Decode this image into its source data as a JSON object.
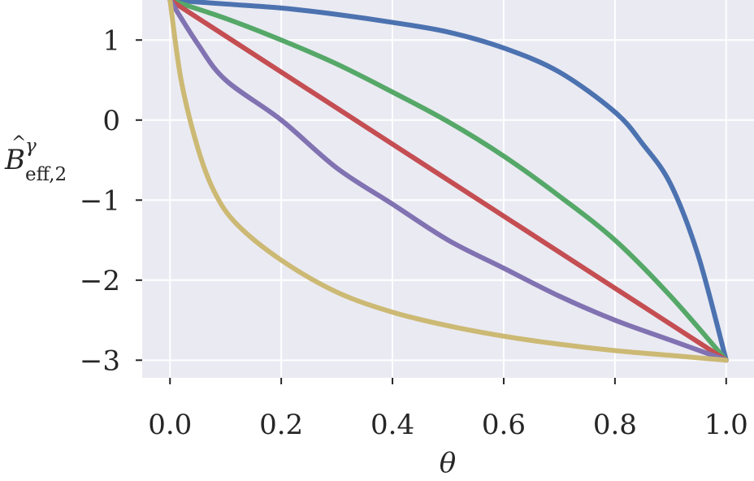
{
  "chart_data": {
    "type": "line",
    "title": "",
    "xlabel": "θ",
    "ylabel": {
      "base": "B",
      "subscript": "eff,2",
      "superscript": "γ"
    },
    "xlim": [
      -0.05,
      1.05
    ],
    "ylim": [
      -3.22,
      1.5
    ],
    "xticks": [
      0.0,
      0.2,
      0.4,
      0.6,
      0.8,
      1.0
    ],
    "xtick_labels": [
      "0.0",
      "0.2",
      "0.4",
      "0.6",
      "0.8",
      "1.0"
    ],
    "yticks": [
      1,
      0,
      -1,
      -2,
      -3
    ],
    "ytick_labels": [
      "1",
      "0",
      "−1",
      "−2",
      "−3"
    ],
    "grid": true,
    "background": "#eaeaf2",
    "grid_color": "#ffffff",
    "series": [
      {
        "color": "#4c72b0",
        "x": [
          0.0,
          0.1,
          0.2,
          0.3,
          0.4,
          0.5,
          0.6,
          0.7,
          0.8,
          0.85,
          0.9,
          0.95,
          1.0
        ],
        "y": [
          1.5,
          1.45,
          1.4,
          1.32,
          1.22,
          1.1,
          0.9,
          0.6,
          0.1,
          -0.3,
          -0.8,
          -1.7,
          -3.0
        ]
      },
      {
        "color": "#55a868",
        "x": [
          0.0,
          0.1,
          0.2,
          0.3,
          0.4,
          0.5,
          0.6,
          0.7,
          0.8,
          0.9,
          1.0
        ],
        "y": [
          1.5,
          1.27,
          1.0,
          0.7,
          0.35,
          -0.02,
          -0.45,
          -0.95,
          -1.5,
          -2.2,
          -3.0
        ]
      },
      {
        "color": "#c44e52",
        "x": [
          0.0,
          1.0
        ],
        "y": [
          1.5,
          -3.0
        ]
      },
      {
        "color": "#8172b2",
        "x": [
          0.0,
          0.05,
          0.1,
          0.2,
          0.3,
          0.4,
          0.5,
          0.6,
          0.7,
          0.8,
          0.9,
          1.0
        ],
        "y": [
          1.5,
          0.95,
          0.5,
          0.0,
          -0.6,
          -1.05,
          -1.5,
          -1.85,
          -2.2,
          -2.5,
          -2.75,
          -3.0
        ]
      },
      {
        "color": "#ccb974",
        "x": [
          0.0,
          0.02,
          0.05,
          0.08,
          0.12,
          0.2,
          0.3,
          0.4,
          0.5,
          0.6,
          0.7,
          0.8,
          0.9,
          1.0
        ],
        "y": [
          1.5,
          0.5,
          -0.35,
          -0.9,
          -1.3,
          -1.75,
          -2.15,
          -2.4,
          -2.57,
          -2.7,
          -2.8,
          -2.88,
          -2.94,
          -3.0
        ]
      }
    ]
  }
}
